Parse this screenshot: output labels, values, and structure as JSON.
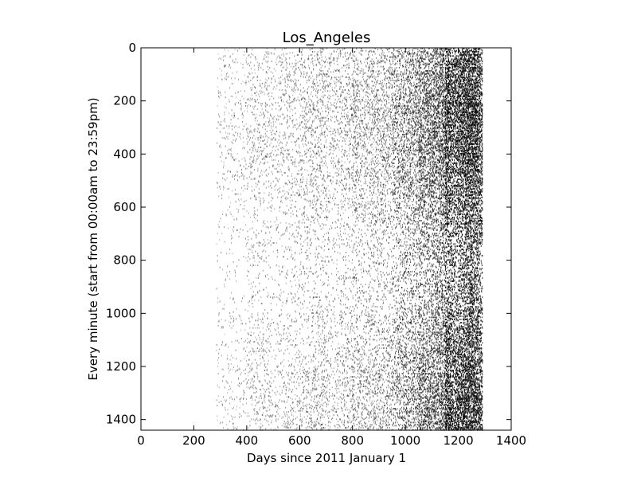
{
  "chart_data": {
    "type": "heatmap",
    "title": "Los_Angeles",
    "xlabel": "Days since 2011 January 1",
    "ylabel": "Every minute (start from 00:00am to 23:59pm)",
    "xlim": [
      0,
      1400
    ],
    "ylim": [
      1440,
      0
    ],
    "x_ticks": [
      0,
      200,
      400,
      600,
      800,
      1000,
      1200,
      1400
    ],
    "y_ticks": [
      0,
      200,
      400,
      600,
      800,
      1000,
      1200,
      1400
    ],
    "x_tick_labels": [
      "0",
      "200",
      "400",
      "600",
      "800",
      "1000",
      "1200",
      "1400"
    ],
    "y_tick_labels": [
      "0",
      "200",
      "400",
      "600",
      "800",
      "1000",
      "1200",
      "1400"
    ],
    "grid": false,
    "colormap": "gray_r",
    "data_extent_days": [
      285,
      1290
    ],
    "density_profile": [
      {
        "days": [
          285,
          400
        ],
        "density": 0.02
      },
      {
        "days": [
          400,
          600
        ],
        "density": 0.035
      },
      {
        "days": [
          600,
          800
        ],
        "density": 0.05
      },
      {
        "days": [
          800,
          950
        ],
        "density": 0.07
      },
      {
        "days": [
          950,
          1050
        ],
        "density": 0.11
      },
      {
        "days": [
          1050,
          1150
        ],
        "density": 0.16
      },
      {
        "days": [
          1150,
          1290
        ],
        "density": 0.24
      }
    ],
    "colors": {
      "background": "#ffffff",
      "dot": "#000000",
      "axis": "#000000"
    }
  }
}
